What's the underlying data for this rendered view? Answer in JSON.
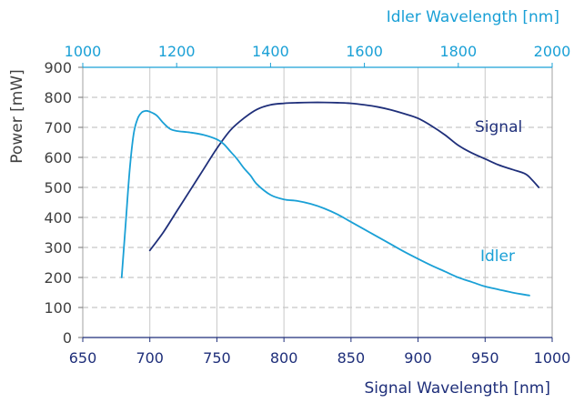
{
  "chart_data": {
    "type": "line",
    "title": "",
    "xlabel": "Signal Wavelength [nm]",
    "x2label": "Idler Wavelength [nm]",
    "ylabel": "Power [mW]",
    "xlim": [
      650,
      1000
    ],
    "x2lim": [
      1000,
      2000
    ],
    "ylim": [
      0,
      900
    ],
    "xticks": [
      "650",
      "700",
      "750",
      "800",
      "850",
      "900",
      "950",
      "1000"
    ],
    "x2ticks": [
      "1000",
      "1200",
      "1400",
      "1600",
      "1800",
      "2000"
    ],
    "yticks": [
      "0",
      "100",
      "200",
      "300",
      "400",
      "500",
      "600",
      "700",
      "800",
      "900"
    ],
    "vertical_grid": "solid",
    "horizontal_grid": "dashed",
    "series": [
      {
        "name": "Signal",
        "color": "#1f2f7a",
        "x": [
          700,
          710,
          720,
          730,
          740,
          750,
          760,
          770,
          780,
          790,
          800,
          810,
          820,
          830,
          840,
          850,
          860,
          870,
          880,
          890,
          900,
          910,
          920,
          930,
          940,
          950,
          960,
          970,
          980,
          985,
          990
        ],
        "y": [
          290,
          350,
          420,
          490,
          560,
          630,
          690,
          730,
          760,
          775,
          780,
          782,
          783,
          783,
          782,
          780,
          775,
          768,
          758,
          745,
          730,
          705,
          675,
          640,
          615,
          595,
          575,
          560,
          545,
          525,
          500
        ]
      },
      {
        "name": "Idler",
        "color": "#1aa0d6",
        "x": [
          679,
          682,
          685,
          688,
          691,
          694,
          697,
          700,
          705,
          710,
          715,
          720,
          730,
          740,
          750,
          755,
          760,
          765,
          770,
          775,
          780,
          790,
          800,
          810,
          820,
          830,
          840,
          850,
          860,
          870,
          880,
          890,
          900,
          910,
          920,
          930,
          940,
          950,
          960,
          970,
          983
        ],
        "y": [
          200,
          380,
          560,
          680,
          730,
          750,
          755,
          752,
          740,
          715,
          695,
          688,
          683,
          675,
          660,
          645,
          620,
          595,
          565,
          540,
          510,
          475,
          460,
          455,
          445,
          430,
          410,
          385,
          360,
          335,
          310,
          285,
          262,
          240,
          220,
          200,
          185,
          170,
          160,
          150,
          140
        ]
      }
    ]
  }
}
